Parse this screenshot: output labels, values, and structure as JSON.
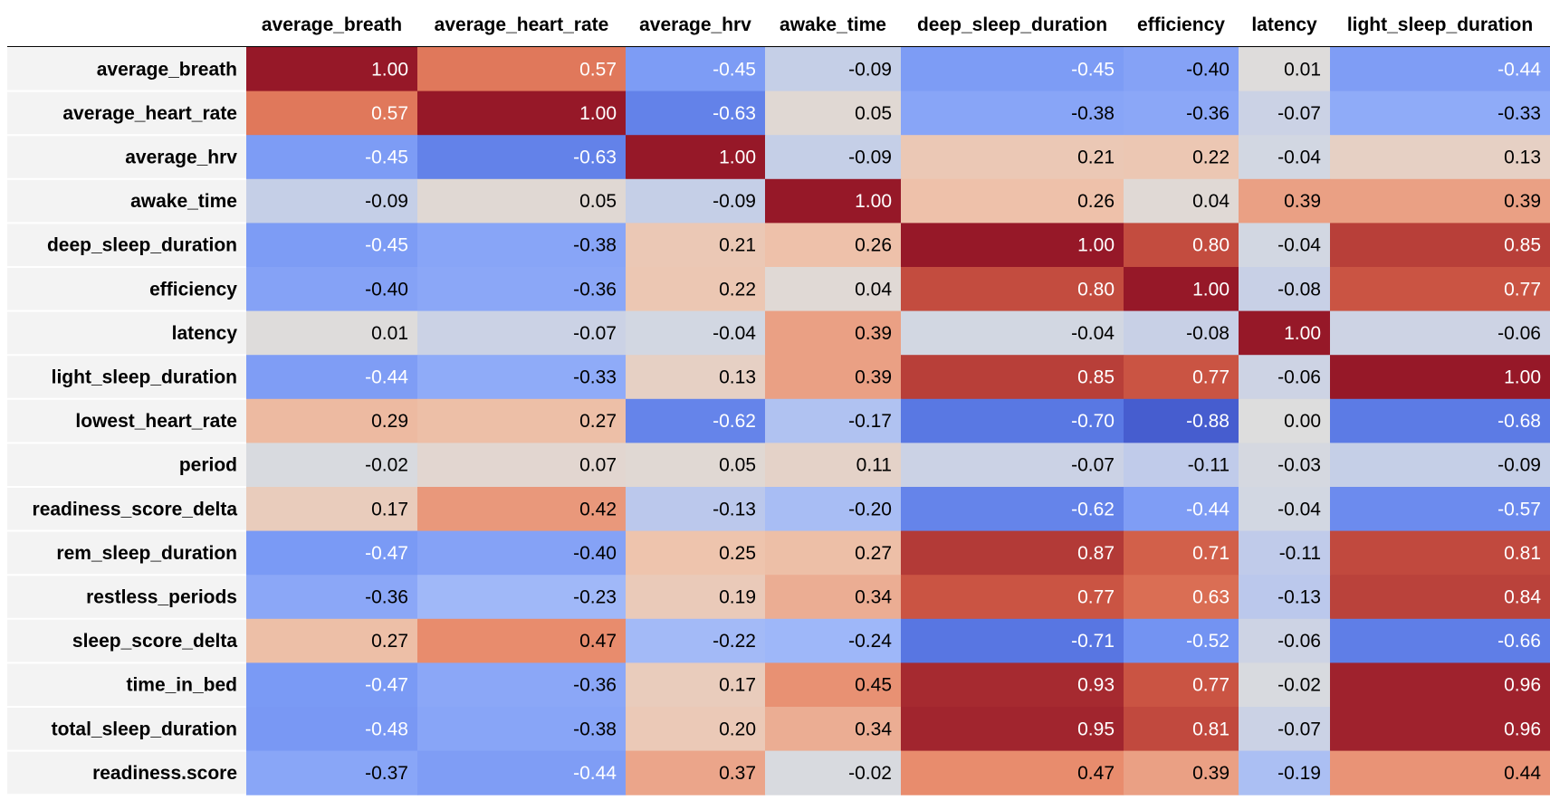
{
  "chart_data": {
    "type": "heatmap",
    "title": "",
    "colormap": "coolwarm",
    "vmin": -1.0,
    "vmax": 1.0,
    "value_format": "0.00",
    "row_header_background": "#f3f3f3",
    "header_rule_color": "#000000",
    "columns": [
      "average_breath",
      "average_heart_rate",
      "average_hrv",
      "awake_time",
      "deep_sleep_duration",
      "efficiency",
      "latency",
      "light_sleep_duration"
    ],
    "rows": [
      "average_breath",
      "average_heart_rate",
      "average_hrv",
      "awake_time",
      "deep_sleep_duration",
      "efficiency",
      "latency",
      "light_sleep_duration",
      "lowest_heart_rate",
      "period",
      "readiness_score_delta",
      "rem_sleep_duration",
      "restless_periods",
      "sleep_score_delta",
      "time_in_bed",
      "total_sleep_duration",
      "readiness.score"
    ],
    "values": [
      [
        1.0,
        0.57,
        -0.45,
        -0.09,
        -0.45,
        -0.4,
        0.01,
        -0.44
      ],
      [
        0.57,
        1.0,
        -0.63,
        0.05,
        -0.38,
        -0.36,
        -0.07,
        -0.33
      ],
      [
        -0.45,
        -0.63,
        1.0,
        -0.09,
        0.21,
        0.22,
        -0.04,
        0.13
      ],
      [
        -0.09,
        0.05,
        -0.09,
        1.0,
        0.26,
        0.04,
        0.39,
        0.39
      ],
      [
        -0.45,
        -0.38,
        0.21,
        0.26,
        1.0,
        0.8,
        -0.04,
        0.85
      ],
      [
        -0.4,
        -0.36,
        0.22,
        0.04,
        0.8,
        1.0,
        -0.08,
        0.77
      ],
      [
        0.01,
        -0.07,
        -0.04,
        0.39,
        -0.04,
        -0.08,
        1.0,
        -0.06
      ],
      [
        -0.44,
        -0.33,
        0.13,
        0.39,
        0.85,
        0.77,
        -0.06,
        1.0
      ],
      [
        0.29,
        0.27,
        -0.62,
        -0.17,
        -0.7,
        -0.88,
        0.0,
        -0.68
      ],
      [
        -0.02,
        0.07,
        0.05,
        0.11,
        -0.07,
        -0.11,
        -0.03,
        -0.09
      ],
      [
        0.17,
        0.42,
        -0.13,
        -0.2,
        -0.62,
        -0.44,
        -0.04,
        -0.57
      ],
      [
        -0.47,
        -0.4,
        0.25,
        0.27,
        0.87,
        0.71,
        -0.11,
        0.81
      ],
      [
        -0.36,
        -0.23,
        0.19,
        0.34,
        0.77,
        0.63,
        -0.13,
        0.84
      ],
      [
        0.27,
        0.47,
        -0.22,
        -0.24,
        -0.71,
        -0.52,
        -0.06,
        -0.66
      ],
      [
        -0.47,
        -0.36,
        0.17,
        0.45,
        0.93,
        0.77,
        -0.02,
        0.96
      ],
      [
        -0.48,
        -0.38,
        0.2,
        0.34,
        0.95,
        0.81,
        -0.07,
        0.96
      ],
      [
        -0.37,
        -0.44,
        0.37,
        -0.02,
        0.47,
        0.39,
        -0.19,
        0.44
      ]
    ]
  }
}
